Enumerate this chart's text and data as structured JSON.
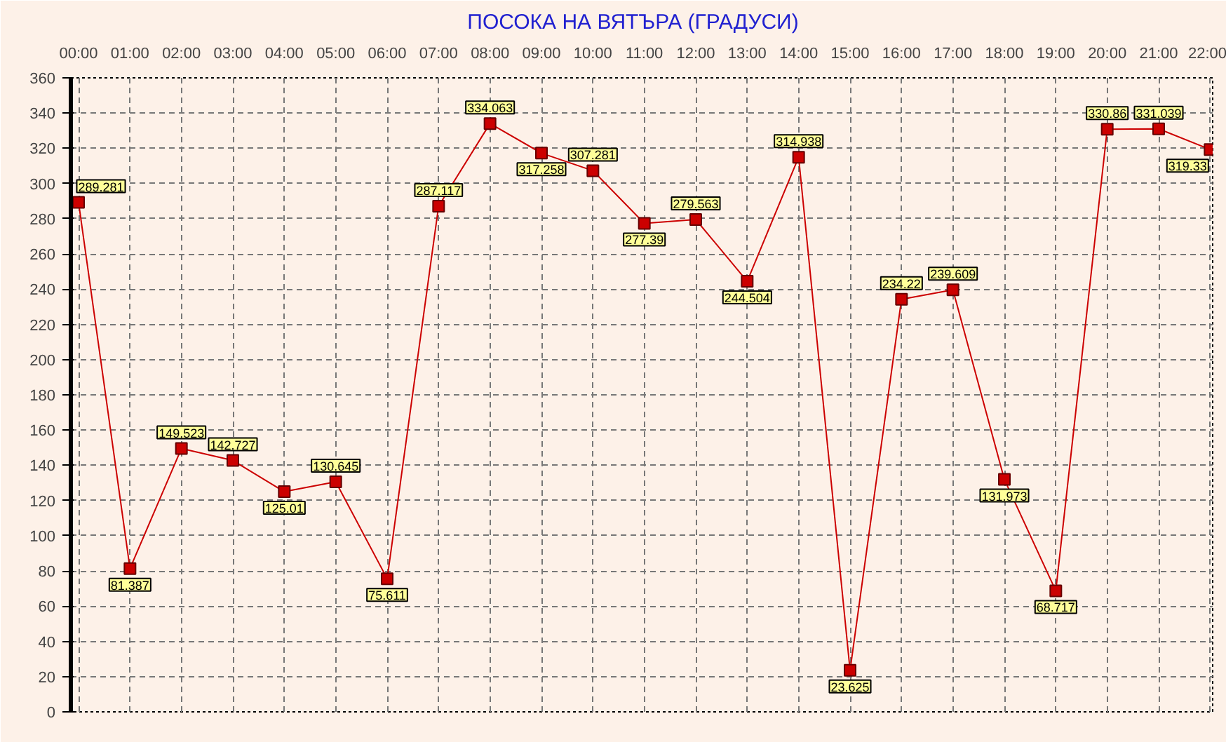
{
  "chart_data": {
    "type": "line",
    "title": "ПОСОКА НА ВЯТЪРА    (ГРАДУСИ)",
    "x": [
      0,
      1,
      2,
      3,
      4,
      5,
      6,
      7,
      8,
      9,
      10,
      11,
      12,
      13,
      14,
      15,
      16,
      17,
      18,
      19,
      20,
      21,
      22
    ],
    "series": [
      {
        "color": "#cc0000",
        "values": [
          289.281,
          81.387,
          149.523,
          142.727,
          125.01,
          130.645,
          75.611,
          287.117,
          334.063,
          317.258,
          307.281,
          277.39,
          279.563,
          244.504,
          314.938,
          23.625,
          234.22,
          239.609,
          131.973,
          68.717,
          330.86,
          331.039,
          319.33
        ]
      }
    ],
    "xlim": [
      -0.15,
      22.05
    ],
    "xticks": [
      {
        "value": 0,
        "label": "00:00"
      },
      {
        "value": 1,
        "label": "01:00"
      },
      {
        "value": 2,
        "label": "02:00"
      },
      {
        "value": 3,
        "label": "03:00"
      },
      {
        "value": 4,
        "label": "04:00"
      },
      {
        "value": 5,
        "label": "05:00"
      },
      {
        "value": 6,
        "label": "06:00"
      },
      {
        "value": 7,
        "label": "07:00"
      },
      {
        "value": 8,
        "label": "08:00"
      },
      {
        "value": 9,
        "label": "09:00"
      },
      {
        "value": 10,
        "label": "10:00"
      },
      {
        "value": 11,
        "label": "11:00"
      },
      {
        "value": 12,
        "label": "12:00"
      },
      {
        "value": 13,
        "label": "13:00"
      },
      {
        "value": 14,
        "label": "14:00"
      },
      {
        "value": 15,
        "label": "15:00"
      },
      {
        "value": 16,
        "label": "16:00"
      },
      {
        "value": 17,
        "label": "17:00"
      },
      {
        "value": 18,
        "label": "18:00"
      },
      {
        "value": 19,
        "label": "19:00"
      },
      {
        "value": 20,
        "label": "20:00"
      },
      {
        "value": 21,
        "label": "21:00"
      },
      {
        "value": 22,
        "label": "22:00"
      }
    ],
    "ylim": [
      0,
      360
    ],
    "yticks": [
      0,
      20,
      40,
      60,
      80,
      100,
      120,
      140,
      160,
      180,
      200,
      220,
      240,
      260,
      280,
      300,
      320,
      340,
      360
    ],
    "grid": true,
    "marker": "square",
    "line_style": "solid",
    "data_labels": true
  }
}
